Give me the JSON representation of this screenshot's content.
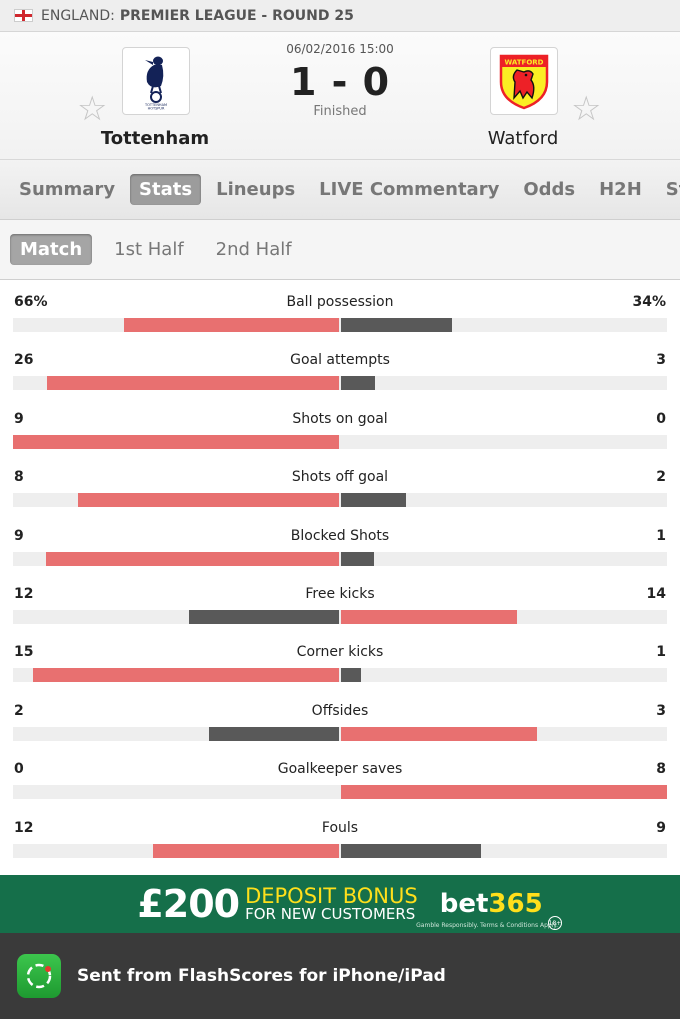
{
  "breadcrumb": {
    "country": "ENGLAND:",
    "competition": "PREMIER LEAGUE - ROUND 25"
  },
  "match": {
    "datetime": "06/02/2016 15:00",
    "score": "1 - 0",
    "status": "Finished",
    "home": {
      "name": "Tottenham",
      "logo": "tottenham-crest"
    },
    "away": {
      "name": "Watford",
      "logo": "watford-crest"
    }
  },
  "tabs": [
    "Summary",
    "Stats",
    "Lineups",
    "LIVE Commentary",
    "Odds",
    "H2H",
    "Standi"
  ],
  "active_tab": "Stats",
  "subtabs": [
    "Match",
    "1st Half",
    "2nd Half"
  ],
  "active_subtab": "Match",
  "colors": {
    "leader": "#e87070",
    "trailer": "#595959",
    "track": "#eeeeee"
  },
  "stats": [
    {
      "name": "Ball possession",
      "home": "66%",
      "away": "34%",
      "home_val": 66,
      "away_val": 34
    },
    {
      "name": "Goal attempts",
      "home": "26",
      "away": "3",
      "home_val": 26,
      "away_val": 3
    },
    {
      "name": "Shots on goal",
      "home": "9",
      "away": "0",
      "home_val": 9,
      "away_val": 0
    },
    {
      "name": "Shots off goal",
      "home": "8",
      "away": "2",
      "home_val": 8,
      "away_val": 2
    },
    {
      "name": "Blocked Shots",
      "home": "9",
      "away": "1",
      "home_val": 9,
      "away_val": 1
    },
    {
      "name": "Free kicks",
      "home": "12",
      "away": "14",
      "home_val": 12,
      "away_val": 14
    },
    {
      "name": "Corner kicks",
      "home": "15",
      "away": "1",
      "home_val": 15,
      "away_val": 1
    },
    {
      "name": "Offsides",
      "home": "2",
      "away": "3",
      "home_val": 2,
      "away_val": 3
    },
    {
      "name": "Goalkeeper saves",
      "home": "0",
      "away": "8",
      "home_val": 0,
      "away_val": 8
    },
    {
      "name": "Fouls",
      "home": "12",
      "away": "9",
      "home_val": 12,
      "away_val": 9
    }
  ],
  "ad": {
    "amount": "£200",
    "line1": "DEPOSIT BONUS",
    "line2": "FOR NEW CUSTOMERS",
    "brand_main": "bet",
    "brand_accent": "365",
    "terms": "Gamble Responsibly. Terms & Conditions Apply.",
    "age": "18+"
  },
  "footer": {
    "text": "Sent from FlashScores for iPhone/iPad"
  }
}
